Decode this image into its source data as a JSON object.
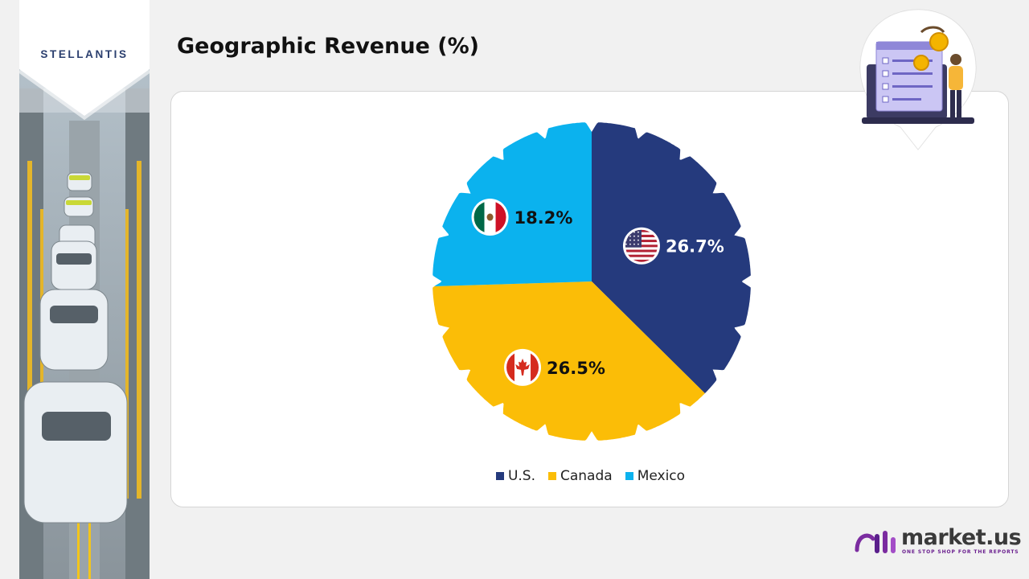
{
  "header": {
    "title": "Geographic Revenue (%)",
    "company_logo": "STELLANTIS"
  },
  "footer": {
    "brand_name": "market.us",
    "brand_tagline": "ONE STOP SHOP FOR THE REPORTS"
  },
  "icons": {
    "flags": [
      "us-flag-icon",
      "canada-flag-icon",
      "mexico-flag-icon"
    ],
    "badge": "revenue-report-illustration"
  },
  "chart_data": {
    "type": "pie",
    "title": "Geographic Revenue (%)",
    "categories": [
      "U.S.",
      "Canada",
      "Mexico"
    ],
    "values": [
      26.7,
      26.5,
      18.2
    ],
    "labels": [
      "26.7%",
      "26.5%",
      "18.2%"
    ],
    "colors": [
      "#253a7d",
      "#fbbd07",
      "#0bb2ee"
    ],
    "start_angle_deg": 0,
    "legend_position": "bottom"
  }
}
